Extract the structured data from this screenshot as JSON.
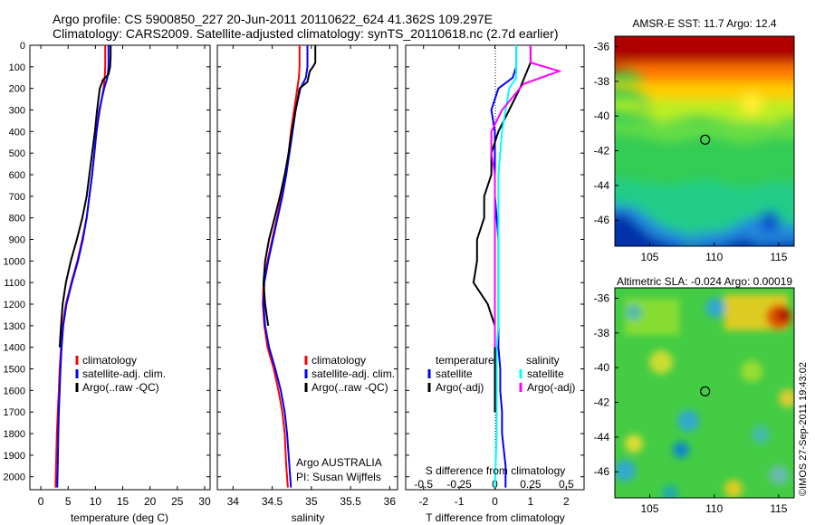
{
  "header": {
    "line1": "Argo profile: CS 5900850_227 20-Jun-2011 20110622_624 41.362S 109.297E",
    "line2": "Climatology: CARS2009. Satellite-adjusted climatology: synTS_20110618.nc (2.7d earlier)"
  },
  "side_credit": "©IMOS 27-Sep-2011 19:43:02",
  "colors": {
    "climatology": "#ff0000",
    "satellite": "#0000ff",
    "argo": "#000000",
    "sal_satellite": "#00ffff",
    "sal_argo": "#ff00ff"
  },
  "chart_data": [
    {
      "type": "line",
      "xlabel": "temperature (deg C)",
      "xlim": [
        -2,
        31
      ],
      "xticks": [
        "0",
        "5",
        "10",
        "15",
        "20",
        "25",
        "30"
      ],
      "ylim": [
        0,
        2060
      ],
      "yticks": [
        "0",
        "100",
        "200",
        "300",
        "400",
        "500",
        "600",
        "700",
        "800",
        "900",
        "1000",
        "1100",
        "1200",
        "1300",
        "1400",
        "1500",
        "1600",
        "1700",
        "1800",
        "1900",
        "2000"
      ],
      "legend": [
        "climatology",
        "satellite-adj. clim.",
        "Argo(..raw -QC)"
      ],
      "legend_position": "lower-right",
      "series": [
        {
          "name": "climatology",
          "color": "#ff0000",
          "x": [
            11.8,
            11.8,
            11.7,
            11.5,
            10.8,
            10.2,
            9.8,
            9.4,
            8.9,
            8.4,
            7.6,
            6.7,
            5.6,
            4.6,
            4.0,
            3.7,
            3.45,
            3.3,
            3.1,
            2.95,
            2.8,
            2.7
          ],
          "y": [
            0,
            100,
            150,
            200,
            300,
            400,
            500,
            600,
            700,
            800,
            900,
            1000,
            1100,
            1200,
            1300,
            1400,
            1500,
            1600,
            1700,
            1800,
            1950,
            2050
          ]
        },
        {
          "name": "satellite-adj. clim.",
          "color": "#0000ff",
          "x": [
            12.4,
            12.4,
            12.2,
            11.6,
            10.7,
            10.2,
            9.8,
            9.4,
            8.9,
            8.4,
            7.7,
            6.8,
            5.7,
            4.7,
            4.1,
            3.8,
            3.6,
            3.45,
            3.3,
            3.2,
            3.1,
            3.0
          ],
          "y": [
            0,
            100,
            150,
            200,
            300,
            400,
            500,
            600,
            700,
            800,
            900,
            1000,
            1100,
            1200,
            1300,
            1400,
            1500,
            1600,
            1700,
            1800,
            1950,
            2050
          ]
        },
        {
          "name": "Argo(..raw -QC)",
          "color": "#000000",
          "x": [
            12.8,
            12.8,
            12.7,
            12.4,
            11.4,
            10.8,
            10.3,
            9.9,
            9.4,
            8.9,
            8.4,
            7.6,
            6.6,
            5.5,
            4.6,
            4.0,
            3.7,
            3.45
          ],
          "y": [
            0,
            50,
            100,
            135,
            160,
            200,
            300,
            400,
            500,
            600,
            700,
            800,
            900,
            1000,
            1100,
            1200,
            1300,
            1400
          ]
        }
      ]
    },
    {
      "type": "line",
      "xlabel": "salinity",
      "xlim": [
        33.8,
        36.1
      ],
      "xticks": [
        "34",
        "34.5",
        "35",
        "35.5",
        "36"
      ],
      "ylim": [
        0,
        2060
      ],
      "legend": [
        "climatology",
        "satellite-adj. clim.",
        "Argo(..raw -QC)"
      ],
      "legend_position": "lower-right",
      "annotation": [
        "Argo AUSTRALIA",
        "PI: Susan Wijffels"
      ],
      "series": [
        {
          "name": "climatology",
          "color": "#ff0000",
          "x": [
            34.85,
            34.85,
            34.84,
            34.82,
            34.78,
            34.74,
            34.71,
            34.67,
            34.62,
            34.56,
            34.5,
            34.44,
            34.39,
            34.38,
            34.4,
            34.44,
            34.52,
            34.58,
            34.63,
            34.66,
            34.68,
            34.7
          ],
          "y": [
            0,
            100,
            150,
            200,
            300,
            400,
            500,
            600,
            700,
            800,
            900,
            1000,
            1100,
            1200,
            1300,
            1400,
            1500,
            1600,
            1700,
            1800,
            1950,
            2050
          ]
        },
        {
          "name": "satellite-adj. clim.",
          "color": "#0000ff",
          "x": [
            34.95,
            34.95,
            34.93,
            34.86,
            34.8,
            34.76,
            34.72,
            34.68,
            34.63,
            34.57,
            34.51,
            34.45,
            34.4,
            34.39,
            34.41,
            34.46,
            34.54,
            34.61,
            34.66,
            34.69,
            34.72,
            34.74
          ],
          "y": [
            0,
            100,
            150,
            200,
            300,
            400,
            500,
            600,
            700,
            800,
            900,
            1000,
            1100,
            1200,
            1300,
            1400,
            1500,
            1600,
            1700,
            1800,
            1950,
            2050
          ]
        },
        {
          "name": "Argo(..raw -QC)",
          "color": "#000000",
          "x": [
            35.05,
            35.05,
            35.02,
            34.98,
            34.95,
            34.85,
            34.8,
            34.75,
            34.71,
            34.66,
            34.6,
            34.53,
            34.46,
            34.41,
            34.39,
            34.41,
            34.45
          ],
          "y": [
            0,
            80,
            100,
            120,
            170,
            200,
            300,
            400,
            500,
            600,
            700,
            800,
            900,
            1000,
            1100,
            1200,
            1300
          ]
        }
      ]
    },
    {
      "type": "line",
      "xlabel": "T difference from climatology",
      "xlabel2": "S difference from climatology",
      "xlim": [
        -2.5,
        2.5
      ],
      "xticks": [
        "-2",
        "-1",
        "0",
        "1",
        "2"
      ],
      "xticks2": [
        "-0.5",
        "-0.25",
        "0",
        "0.25",
        "0.5"
      ],
      "ylim": [
        0,
        2060
      ],
      "legend_title_left": "temperature",
      "legend_title_right": "salinity",
      "legend": [
        "satellite",
        "Argo(-adj)",
        "satellite",
        "Argo(-adj)"
      ],
      "series": [
        {
          "name": "temperature satellite",
          "color": "#0000ff",
          "x": [
            0.6,
            0.6,
            0.5,
            0.1,
            -0.1,
            0.0,
            0.0,
            0.0,
            0.0,
            0.05,
            0.1,
            0.1,
            0.1,
            0.1,
            0.1,
            0.1,
            0.15,
            0.15,
            0.2,
            0.2,
            0.3,
            0.3
          ],
          "y": [
            0,
            100,
            150,
            200,
            300,
            400,
            500,
            600,
            700,
            800,
            900,
            1000,
            1100,
            1200,
            1300,
            1400,
            1500,
            1600,
            1700,
            1800,
            1950,
            2050
          ]
        },
        {
          "name": "temperature Argo(-adj)",
          "color": "#000000",
          "x": [
            1.0,
            1.0,
            0.9,
            0.7,
            0.4,
            0.1,
            -0.1,
            -0.1,
            -0.3,
            -0.3,
            -0.5,
            -0.5,
            -0.6,
            -0.2,
            0.0,
            0.0,
            0.0,
            0.0,
            0.0
          ],
          "y": [
            0,
            80,
            120,
            200,
            300,
            400,
            500,
            600,
            700,
            800,
            900,
            1000,
            1100,
            1200,
            1300,
            1400,
            1500,
            1600,
            1700
          ]
        },
        {
          "name": "salinity satellite",
          "color": "#00ffff",
          "x": [
            0.6,
            0.6,
            0.6,
            0.4,
            0.3,
            0.2,
            0.15,
            0.1,
            0.1,
            0.1,
            0.1,
            0.1,
            0.1,
            0.1,
            0.1,
            0.05,
            0.05,
            0.05,
            0.05,
            0.05,
            0.0
          ],
          "y": [
            0,
            100,
            150,
            200,
            300,
            400,
            500,
            600,
            700,
            800,
            900,
            1000,
            1100,
            1200,
            1300,
            1400,
            1500,
            1600,
            1700,
            1800,
            2050
          ]
        },
        {
          "name": "salinity Argo(-adj)",
          "color": "#ff00ff",
          "x": [
            1.0,
            1.0,
            1.8,
            0.8,
            0.2,
            -0.1,
            -0.1,
            0.0,
            0.0,
            0.0,
            0.0,
            0.0,
            0.0,
            0.0,
            0.0,
            0.0
          ],
          "y": [
            0,
            80,
            120,
            180,
            300,
            400,
            500,
            600,
            700,
            800,
            900,
            1000,
            1100,
            1200,
            1300,
            1400
          ]
        }
      ]
    },
    {
      "type": "heatmap",
      "title": "AMSR-E SST: 11.7  Argo: 12.4",
      "xticks": [
        "105",
        "110",
        "115"
      ],
      "yticks": [
        "-36",
        "-38",
        "-40",
        "-42",
        "-44",
        "-46"
      ],
      "marker": {
        "lon": 109.297,
        "lat": -41.362
      }
    },
    {
      "type": "heatmap",
      "title": "Altimetric SLA: -0.024  Argo: 0.00019",
      "xticks": [
        "105",
        "110",
        "115"
      ],
      "yticks": [
        "-36",
        "-38",
        "-40",
        "-42",
        "-44",
        "-46"
      ],
      "marker": {
        "lon": 109.297,
        "lat": -41.362
      }
    }
  ]
}
